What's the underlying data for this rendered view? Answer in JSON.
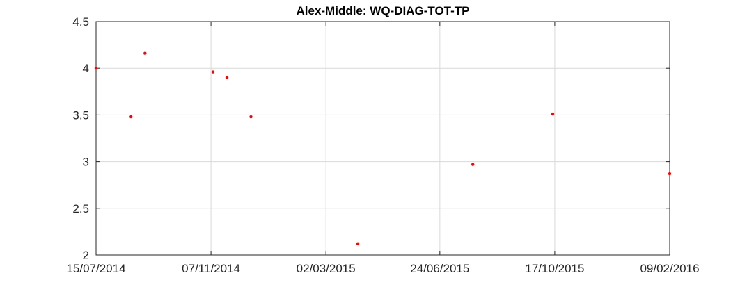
{
  "chart_data": {
    "type": "scatter",
    "title": "Alex-Middle: WQ-DIAG-TOT-TP",
    "xlabel": "",
    "ylabel": "",
    "x_type": "date",
    "xlim": [
      "15/07/2014",
      "09/02/2016"
    ],
    "ylim": [
      2,
      4.5
    ],
    "x_ticks": [
      "15/07/2014",
      "07/11/2014",
      "02/03/2015",
      "24/06/2015",
      "17/10/2015",
      "09/02/2016"
    ],
    "y_ticks": [
      "2",
      "2.5",
      "3",
      "3.5",
      "4",
      "4.5"
    ],
    "grid": true,
    "legend": "none",
    "marker_color": "#ff0000",
    "points": [
      {
        "x": "15/07/2014",
        "y": 4.0
      },
      {
        "x": "19/08/2014",
        "y": 3.48
      },
      {
        "x": "02/09/2014",
        "y": 4.16
      },
      {
        "x": "09/11/2014",
        "y": 3.96
      },
      {
        "x": "23/11/2014",
        "y": 3.9
      },
      {
        "x": "17/12/2014",
        "y": 3.48
      },
      {
        "x": "03/04/2015",
        "y": 2.12
      },
      {
        "x": "27/07/2015",
        "y": 2.97
      },
      {
        "x": "15/10/2015",
        "y": 3.51
      },
      {
        "x": "09/02/2016",
        "y": 2.87
      }
    ]
  }
}
